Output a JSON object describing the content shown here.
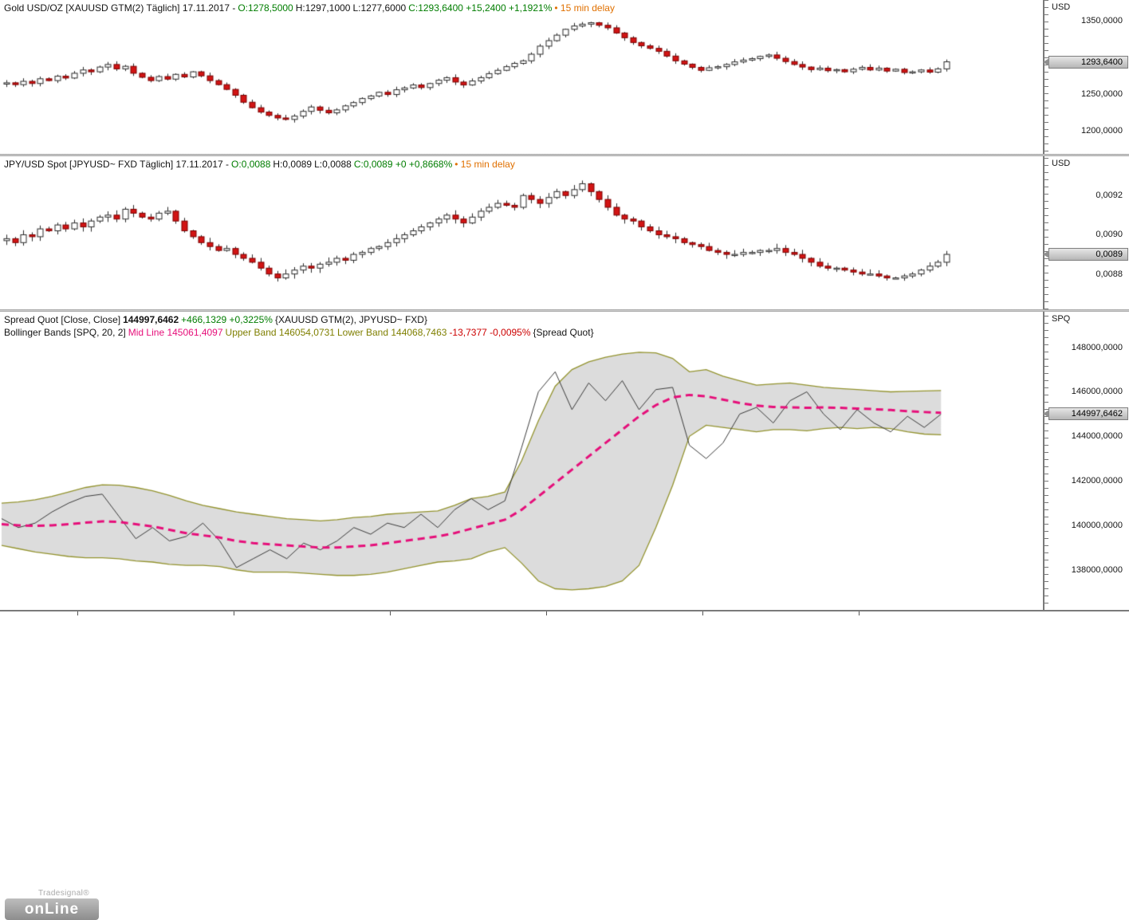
{
  "app": {
    "brand": "Tradesignal®",
    "logo": "onLine"
  },
  "colors": {
    "positive_green": "#007d00",
    "negative_red": "#cc0000",
    "delay_orange": "#e07000",
    "up_candle": "#ffffff",
    "down_candle": "#d21414",
    "down_candle_border": "#7a0000",
    "candle_outline": "#2a2a2a",
    "mid_line_pink": "#e60f7a",
    "band_olive": "#93932e",
    "band_fill": "#dcdcdc",
    "spread_line": "#3c3c3c",
    "marker_bg": "#c6c6c6"
  },
  "panels": {
    "gold": {
      "header": {
        "title": "Gold USD/OZ [XAUUSD GTM(2) Täglich] 17.11.2017 -",
        "open": "O:1278,5000",
        "high": "H:1297,1000",
        "low": "L:1277,6000",
        "close": "C:1293,6400 +15,2400 +1,1921%",
        "delay": "• 15 min delay"
      },
      "axis": {
        "currency": "USD",
        "ticks": [
          {
            "value": 1350,
            "label": "1350,0000"
          },
          {
            "value": 1250,
            "label": "1250,0000"
          },
          {
            "value": 1200,
            "label": "1200,0000"
          }
        ],
        "marker": {
          "value": 1293.64,
          "label": "1293,6400"
        }
      }
    },
    "jpy": {
      "header": {
        "title": "JPY/USD Spot [JPYUSD~ FXD Täglich] 17.11.2017 -",
        "open": "O:0,0088",
        "high": "H:0,0089",
        "low": "L:0,0088",
        "close": "C:0,0089 +0 +0,8668%",
        "delay": "• 15 min delay"
      },
      "axis": {
        "currency": "USD",
        "ticks": [
          {
            "value": 0.0092,
            "label": "0,0092"
          },
          {
            "value": 0.009,
            "label": "0,0090"
          },
          {
            "value": 0.0088,
            "label": "0,0088"
          }
        ],
        "marker": {
          "value": 0.0089,
          "label": "0,0089"
        }
      }
    },
    "spread": {
      "header1": {
        "name": "Spread Quot [Close, Close]",
        "value": "144997,6462",
        "change": "+466,1329 +0,3225%",
        "instruments": "{XAUUSD GTM(2), JPYUSD~ FXD}"
      },
      "header2": {
        "name": "Bollinger Bands [SPQ, 20, 2]",
        "mid": "Mid Line 145061,4097",
        "upper": "Upper Band 146054,0731",
        "lower": "Lower Band 144068,7463",
        "change": "-13,7377 -0,0095%",
        "scope": "{Spread Quot}"
      },
      "axis": {
        "currency": "SPQ",
        "ticks": [
          {
            "value": 148000,
            "label": "148000,0000"
          },
          {
            "value": 146000,
            "label": "146000,0000"
          },
          {
            "value": 144000,
            "label": "144000,0000"
          },
          {
            "value": 142000,
            "label": "142000,0000"
          },
          {
            "value": 140000,
            "label": "140000,0000"
          },
          {
            "value": 138000,
            "label": "138000,0000"
          }
        ],
        "marker": {
          "value": 144997.6462,
          "label": "144997,6462"
        }
      }
    }
  },
  "chart_data": [
    {
      "type": "candlestick",
      "title": "Gold USD/OZ",
      "symbol": "XAUUSD GTM(2)",
      "period": "Täglich",
      "date": "17.11.2017",
      "open": 1278.5,
      "high": 1297.1,
      "low": 1277.6,
      "close": 1293.64,
      "change": 15.24,
      "change_pct": 1.1921,
      "delay": "15 min delay",
      "ylabel": "USD",
      "ylim": [
        1168,
        1378
      ],
      "yticks": [
        1350,
        1250,
        1200
      ],
      "grid": false,
      "closes": [
        1265,
        1262.5,
        1267,
        1264,
        1270.5,
        1268,
        1274,
        1271.5,
        1278,
        1282.5,
        1280,
        1286.5,
        1290,
        1284,
        1287.5,
        1278,
        1272.5,
        1268,
        1273.5,
        1270,
        1276.5,
        1273,
        1280,
        1274.5,
        1268,
        1262.5,
        1256,
        1248,
        1238.5,
        1231,
        1225,
        1220.5,
        1217,
        1215,
        1219.5,
        1226,
        1232,
        1227.5,
        1224,
        1228,
        1233.5,
        1238,
        1243.5,
        1247,
        1252,
        1249,
        1255.5,
        1258,
        1262,
        1258.5,
        1264,
        1268.5,
        1272,
        1266,
        1262,
        1267.5,
        1272,
        1277.5,
        1282,
        1287,
        1291.5,
        1295,
        1304,
        1315,
        1322.5,
        1330,
        1338,
        1342.5,
        1345,
        1347,
        1343.5,
        1340,
        1333,
        1326.5,
        1320,
        1315.5,
        1312,
        1308,
        1301.5,
        1295,
        1290.5,
        1286,
        1282,
        1285.5,
        1287,
        1290,
        1293.5,
        1296,
        1298,
        1301,
        1303,
        1298.5,
        1294,
        1290,
        1286.5,
        1283,
        1285,
        1281.5,
        1283,
        1280,
        1283.5,
        1286,
        1282.5,
        1285,
        1281,
        1283.5,
        1279,
        1280,
        1282.5,
        1279.5,
        1284,
        1293.64
      ]
    },
    {
      "type": "candlestick",
      "title": "JPY/USD Spot",
      "symbol": "JPYUSD~ FXD",
      "period": "Täglich",
      "date": "17.11.2017",
      "open": 0.0088,
      "high": 0.0089,
      "low": 0.0088,
      "close": 0.0089,
      "change": 0,
      "change_pct": 0.8668,
      "delay": "15 min delay",
      "ylabel": "USD",
      "ylim": [
        0.00862,
        0.0094
      ],
      "yticks": [
        0.0092,
        0.009,
        0.0088
      ],
      "grid": false,
      "closes": [
        0.00898,
        0.00896,
        0.009,
        0.00899,
        0.00903,
        0.00902,
        0.00905,
        0.00903,
        0.00906,
        0.00904,
        0.00907,
        0.00909,
        0.0091,
        0.00908,
        0.00913,
        0.00911,
        0.00909,
        0.00908,
        0.00911,
        0.00912,
        0.00907,
        0.00902,
        0.00899,
        0.00896,
        0.00894,
        0.00892,
        0.00893,
        0.0089,
        0.00888,
        0.00886,
        0.00883,
        0.0088,
        0.00878,
        0.0088,
        0.00882,
        0.00884,
        0.00883,
        0.00885,
        0.00886,
        0.00888,
        0.00887,
        0.0089,
        0.00891,
        0.00893,
        0.00894,
        0.00896,
        0.00898,
        0.009,
        0.00902,
        0.00904,
        0.00906,
        0.00908,
        0.0091,
        0.00908,
        0.00906,
        0.00909,
        0.00912,
        0.00914,
        0.00916,
        0.00915,
        0.00914,
        0.0092,
        0.00918,
        0.00916,
        0.00919,
        0.00922,
        0.0092,
        0.00923,
        0.00926,
        0.00922,
        0.00918,
        0.00914,
        0.0091,
        0.00908,
        0.00907,
        0.00904,
        0.00902,
        0.009,
        0.00899,
        0.00898,
        0.00896,
        0.00895,
        0.00894,
        0.00892,
        0.00891,
        0.0089,
        0.0089,
        0.00891,
        0.00891,
        0.00892,
        0.00892,
        0.00893,
        0.00891,
        0.0089,
        0.00888,
        0.00886,
        0.00884,
        0.00883,
        0.00883,
        0.00882,
        0.00881,
        0.0088,
        0.0088,
        0.00879,
        0.00878,
        0.00878,
        0.00879,
        0.0088,
        0.00882,
        0.00884,
        0.00886,
        0.0089
      ]
    },
    {
      "type": "line",
      "title": "Spread Quot [Close, Close]",
      "value": 144997.6462,
      "change": 466.1329,
      "change_pct": 0.3225,
      "instruments": [
        "XAUUSD GTM(2)",
        "JPYUSD~ FXD"
      ],
      "indicator": {
        "name": "Bollinger Bands",
        "source": "SPQ",
        "period": 20,
        "deviation": 2,
        "mid": 145061.4097,
        "upper": 146054.0731,
        "lower": 144068.7463,
        "change": -13.7377,
        "change_pct": -0.0095
      },
      "ylabel": "SPQ",
      "ylim": [
        136200,
        149600
      ],
      "yticks": [
        148000,
        146000,
        144000,
        142000,
        140000,
        138000
      ],
      "grid": false,
      "legend_position": "none",
      "series": [
        {
          "name": "Spread Quot",
          "style": "thin-gray-line",
          "values": [
            140300,
            139900,
            140100,
            140600,
            141000,
            141300,
            141400,
            140400,
            139400,
            139900,
            139300,
            139500,
            140100,
            139300,
            138100,
            138500,
            138900,
            138500,
            139200,
            138900,
            139300,
            139900,
            139600,
            140100,
            139900,
            140500,
            139900,
            140700,
            141200,
            140700,
            141100,
            143500,
            146000,
            146900,
            145200,
            146400,
            145600,
            146500,
            145200,
            146100,
            146200,
            143600,
            143000,
            143700,
            145000,
            145300,
            144600,
            145600,
            146000,
            145000,
            144300,
            145200,
            144600,
            144200,
            144900,
            144400,
            144997.6462
          ]
        },
        {
          "name": "Mid Line",
          "style": "dashed-pink",
          "values": [
            140050,
            140000,
            139975,
            140000,
            140050,
            140120,
            140180,
            140150,
            140050,
            139950,
            139800,
            139650,
            139550,
            139450,
            139300,
            139200,
            139150,
            139100,
            139050,
            139000,
            139000,
            139050,
            139100,
            139200,
            139300,
            139400,
            139500,
            139650,
            139850,
            140050,
            140250,
            140700,
            141300,
            141900,
            142500,
            143100,
            143700,
            144300,
            144900,
            145400,
            145750,
            145860,
            145800,
            145650,
            145500,
            145380,
            145320,
            145300,
            145280,
            145300,
            145280,
            145250,
            145220,
            145180,
            145130,
            145090,
            145061.4097
          ]
        },
        {
          "name": "Upper Band",
          "style": "olive-line-band-top",
          "values": [
            141000,
            141050,
            141150,
            141300,
            141500,
            141700,
            141820,
            141800,
            141700,
            141550,
            141350,
            141100,
            140900,
            140750,
            140600,
            140500,
            140400,
            140300,
            140250,
            140200,
            140250,
            140350,
            140400,
            140500,
            140550,
            140600,
            140650,
            140900,
            141200,
            141300,
            141500,
            142900,
            144700,
            146250,
            147000,
            147350,
            147550,
            147700,
            147780,
            147750,
            147500,
            146900,
            147000,
            146700,
            146500,
            146300,
            146350,
            146400,
            146300,
            146200,
            146150,
            146100,
            146050,
            146000,
            146020,
            146040,
            146054.0731
          ]
        },
        {
          "name": "Lower Band",
          "style": "olive-line-band-bottom",
          "values": [
            139100,
            138950,
            138800,
            138700,
            138600,
            138540,
            138540,
            138500,
            138400,
            138350,
            138250,
            138200,
            138200,
            138150,
            138000,
            137900,
            137900,
            137900,
            137850,
            137800,
            137750,
            137750,
            137800,
            137900,
            138050,
            138200,
            138350,
            138400,
            138500,
            138800,
            139000,
            138300,
            137500,
            137150,
            137100,
            137150,
            137250,
            137500,
            138200,
            139900,
            141800,
            144000,
            144500,
            144400,
            144300,
            144200,
            144300,
            144300,
            144250,
            144350,
            144400,
            144350,
            144400,
            144350,
            144200,
            144100,
            144068.7463
          ]
        }
      ]
    }
  ]
}
